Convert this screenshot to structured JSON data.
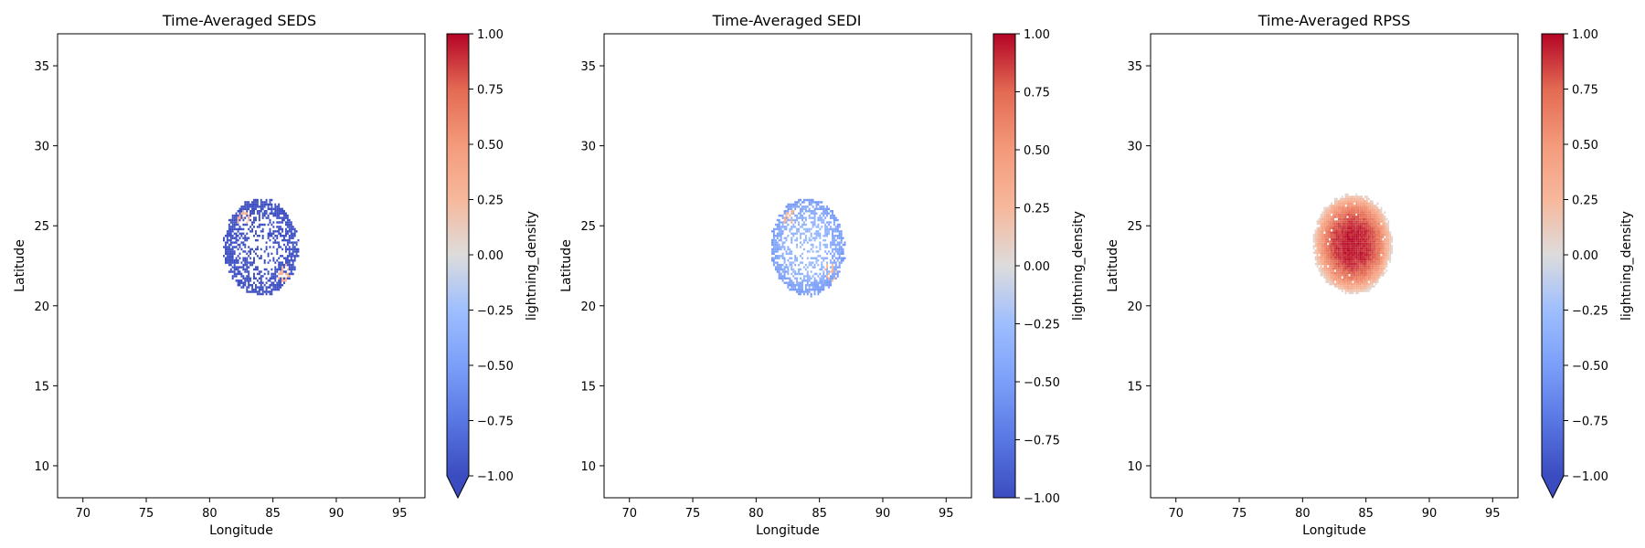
{
  "chart_data": [
    {
      "type": "heatmap",
      "title": "Time-Averaged SEDS",
      "xlabel": "Longitude",
      "ylabel": "Latitude",
      "xlim": [
        68,
        97
      ],
      "ylim": [
        8,
        37
      ],
      "xticks": [
        70,
        75,
        80,
        85,
        90,
        95
      ],
      "yticks": [
        10,
        15,
        20,
        25,
        30,
        35
      ],
      "grid": false,
      "colorbar": {
        "label": "lightning_density",
        "cmap": "coolwarm",
        "range": [
          -1.0,
          1.0
        ],
        "extend": "min",
        "ticks": [
          "1.00",
          "0.75",
          "0.50",
          "0.25",
          "0.00",
          "−0.25",
          "−0.50",
          "−0.75",
          "−1.00"
        ]
      },
      "field": {
        "shape": "ellipse-ring",
        "center": [
          84.0,
          23.6
        ],
        "semi_axes": [
          2.9,
          3.0
        ],
        "tilt_deg": 15,
        "edge_value": -1.0,
        "core_value": -1.0,
        "core_fill": 0.25,
        "edge_fill": 0.92,
        "hotspots": [
          {
            "center": [
              82.6,
              25.4
            ],
            "value": 0.35
          },
          {
            "center": [
              85.8,
              22.0
            ],
            "value": 0.3
          }
        ]
      }
    },
    {
      "type": "heatmap",
      "title": "Time-Averaged SEDI",
      "xlabel": "Longitude",
      "ylabel": "Latitude",
      "xlim": [
        68,
        97
      ],
      "ylim": [
        8,
        37
      ],
      "xticks": [
        70,
        75,
        80,
        85,
        90,
        95
      ],
      "yticks": [
        10,
        15,
        20,
        25,
        30,
        35
      ],
      "grid": false,
      "colorbar": {
        "label": "lightning_density",
        "cmap": "coolwarm",
        "range": [
          -1.0,
          1.0
        ],
        "extend": "neither",
        "ticks": [
          "1.00",
          "0.75",
          "0.50",
          "0.25",
          "0.00",
          "−0.25",
          "−0.50",
          "−0.75",
          "−1.00"
        ]
      },
      "field": {
        "shape": "ellipse-ring",
        "center": [
          84.0,
          23.6
        ],
        "semi_axes": [
          2.9,
          3.0
        ],
        "tilt_deg": 15,
        "edge_value": -0.55,
        "core_value": -0.3,
        "core_fill": 0.25,
        "edge_fill": 0.9,
        "hotspots": [
          {
            "center": [
              82.6,
              25.4
            ],
            "value": 0.3
          },
          {
            "center": [
              85.8,
              22.0
            ],
            "value": 0.25
          }
        ]
      }
    },
    {
      "type": "heatmap",
      "title": "Time-Averaged RPSS",
      "xlabel": "Longitude",
      "ylabel": "Latitude",
      "xlim": [
        68,
        97
      ],
      "ylim": [
        8,
        37
      ],
      "xticks": [
        70,
        75,
        80,
        85,
        90,
        95
      ],
      "yticks": [
        10,
        15,
        20,
        25,
        30,
        35
      ],
      "grid": false,
      "colorbar": {
        "label": "lightning_density",
        "cmap": "coolwarm",
        "range": [
          -1.0,
          1.0
        ],
        "extend": "min",
        "ticks": [
          "1.00",
          "0.75",
          "0.50",
          "0.25",
          "0.00",
          "−0.25",
          "−0.50",
          "−0.75",
          "−1.00"
        ]
      },
      "field": {
        "shape": "ellipse-solid",
        "center": [
          83.9,
          23.8
        ],
        "semi_axes": [
          3.1,
          3.1
        ],
        "tilt_deg": 15,
        "edge_value": 0.05,
        "core_value": 0.95,
        "core_fill": 1.0,
        "edge_fill": 0.95,
        "hotspots": []
      }
    }
  ]
}
